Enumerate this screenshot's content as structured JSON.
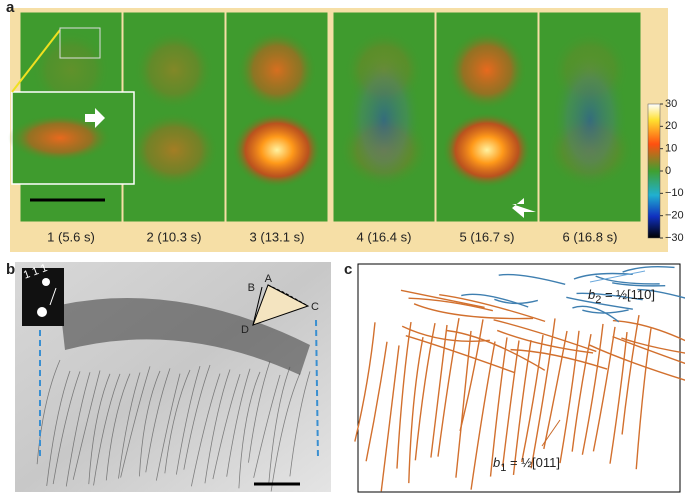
{
  "panels": {
    "a": {
      "label": "a",
      "frames": [
        "1 (5.6 s)",
        "2 (10.3 s)",
        "3 (13.1 s)",
        "4 (16.4 s)",
        "5 (16.7 s)",
        "6 (16.8 s)"
      ],
      "colorbar": {
        "lim": [
          -30,
          30
        ],
        "ticks": [
          30,
          20,
          10,
          0,
          {
            "value": -10,
            "label": "−10"
          },
          {
            "value": -20,
            "label": "−20"
          },
          {
            "value": -30,
            "label": "−30"
          }
        ]
      }
    },
    "b": {
      "label": "b",
      "diffraction": "1 1 1",
      "vertices": [
        "A",
        "B",
        "C",
        "D"
      ]
    },
    "c": {
      "label": "c",
      "b2": {
        "symbol": "b",
        "subscript": "2",
        "vector": " = ½[110]"
      },
      "b1": {
        "symbol": "b",
        "subscript": "1",
        "vector": " = ½[011]"
      }
    }
  }
}
